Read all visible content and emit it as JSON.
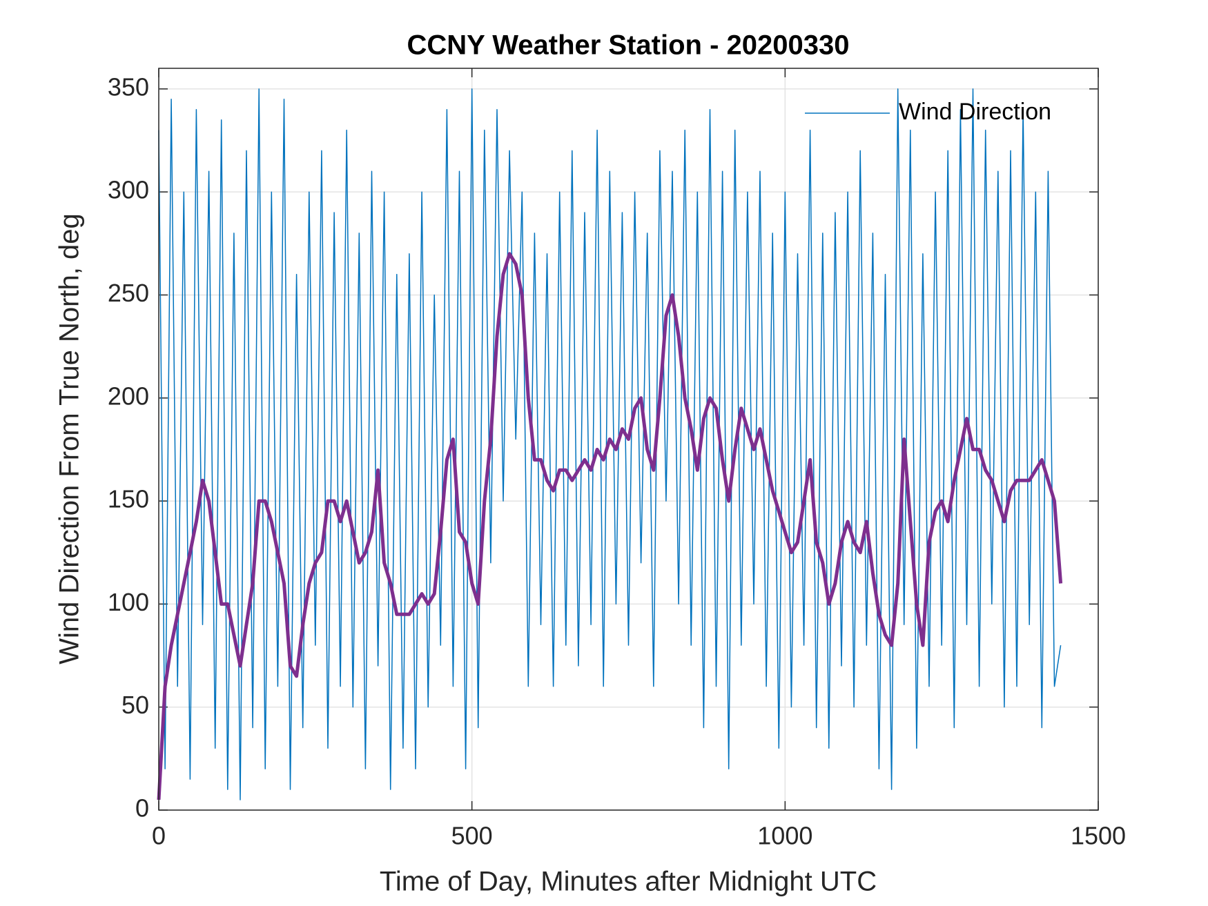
{
  "chart_data": {
    "type": "line",
    "title": "CCNY Weather Station - 20200330",
    "xlabel": "Time of Day, Minutes after Midnight UTC",
    "ylabel": "Wind Direction From True North, deg",
    "x": [
      0,
      10,
      20,
      30,
      40,
      50,
      60,
      70,
      80,
      90,
      100,
      110,
      120,
      130,
      140,
      150,
      160,
      170,
      180,
      190,
      200,
      210,
      220,
      230,
      240,
      250,
      260,
      270,
      280,
      290,
      300,
      310,
      320,
      330,
      340,
      350,
      360,
      370,
      380,
      390,
      400,
      410,
      420,
      430,
      440,
      450,
      460,
      470,
      480,
      490,
      500,
      510,
      520,
      530,
      540,
      550,
      560,
      570,
      580,
      590,
      600,
      610,
      620,
      630,
      640,
      650,
      660,
      670,
      680,
      690,
      700,
      710,
      720,
      730,
      740,
      750,
      760,
      770,
      780,
      790,
      800,
      810,
      820,
      830,
      840,
      850,
      860,
      870,
      880,
      890,
      900,
      910,
      920,
      930,
      940,
      950,
      960,
      970,
      980,
      990,
      1000,
      1010,
      1020,
      1030,
      1040,
      1050,
      1060,
      1070,
      1080,
      1090,
      1100,
      1110,
      1120,
      1130,
      1140,
      1150,
      1160,
      1170,
      1180,
      1190,
      1200,
      1210,
      1220,
      1230,
      1240,
      1250,
      1260,
      1270,
      1280,
      1290,
      1300,
      1310,
      1320,
      1330,
      1340,
      1350,
      1360,
      1370,
      1380,
      1390,
      1400,
      1410,
      1420,
      1430,
      1440
    ],
    "series": [
      {
        "name": "Wind Direction",
        "color": "#0072bd",
        "width": 1.5,
        "values": [
          330,
          20,
          345,
          60,
          300,
          15,
          340,
          90,
          310,
          30,
          335,
          10,
          280,
          5,
          320,
          40,
          350,
          20,
          300,
          60,
          345,
          10,
          260,
          40,
          300,
          80,
          320,
          30,
          290,
          60,
          330,
          50,
          280,
          20,
          310,
          70,
          300,
          10,
          260,
          30,
          270,
          20,
          300,
          50,
          250,
          80,
          340,
          60,
          310,
          20,
          350,
          40,
          330,
          120,
          340,
          150,
          320,
          180,
          300,
          60,
          280,
          90,
          270,
          60,
          300,
          80,
          320,
          70,
          290,
          90,
          330,
          60,
          310,
          100,
          290,
          80,
          300,
          120,
          280,
          60,
          320,
          150,
          310,
          100,
          330,
          80,
          300,
          40,
          340,
          60,
          310,
          20,
          330,
          80,
          300,
          100,
          310,
          60,
          280,
          30,
          300,
          50,
          270,
          80,
          330,
          40,
          280,
          30,
          290,
          70,
          300,
          50,
          320,
          80,
          280,
          20,
          260,
          10,
          350,
          90,
          330,
          30,
          270,
          60,
          300,
          80,
          320,
          40,
          340,
          90,
          350,
          60,
          330,
          100,
          310,
          50,
          320,
          60,
          340,
          90,
          300,
          40,
          310,
          60,
          80
        ]
      },
      {
        "color": "#7e2f8e",
        "width": 5,
        "values": [
          5,
          60,
          80,
          95,
          110,
          125,
          140,
          160,
          150,
          125,
          100,
          100,
          85,
          70,
          90,
          110,
          150,
          150,
          140,
          125,
          110,
          70,
          65,
          90,
          110,
          120,
          125,
          150,
          150,
          140,
          150,
          135,
          120,
          125,
          135,
          165,
          120,
          110,
          95,
          95,
          95,
          100,
          105,
          100,
          105,
          135,
          170,
          180,
          135,
          130,
          110,
          100,
          150,
          180,
          230,
          260,
          270,
          265,
          250,
          200,
          170,
          170,
          160,
          155,
          165,
          165,
          160,
          165,
          170,
          165,
          175,
          170,
          180,
          175,
          185,
          180,
          195,
          200,
          175,
          165,
          200,
          240,
          250,
          230,
          200,
          185,
          165,
          190,
          200,
          195,
          170,
          150,
          175,
          195,
          185,
          175,
          185,
          170,
          155,
          145,
          135,
          125,
          130,
          150,
          170,
          130,
          120,
          100,
          110,
          130,
          140,
          130,
          125,
          140,
          115,
          95,
          85,
          80,
          110,
          180,
          140,
          100,
          80,
          130,
          145,
          150,
          140,
          160,
          175,
          190,
          175,
          175,
          165,
          160,
          150,
          140,
          155,
          160,
          160,
          160,
          165,
          170,
          160,
          150,
          110
        ]
      }
    ],
    "xlim": [
      0,
      1500
    ],
    "xticks": [
      0,
      500,
      1000,
      1500
    ],
    "ylim": [
      0,
      360
    ],
    "yticks": [
      0,
      50,
      100,
      150,
      200,
      250,
      300,
      350
    ],
    "grid": true,
    "legend": "upper right"
  }
}
